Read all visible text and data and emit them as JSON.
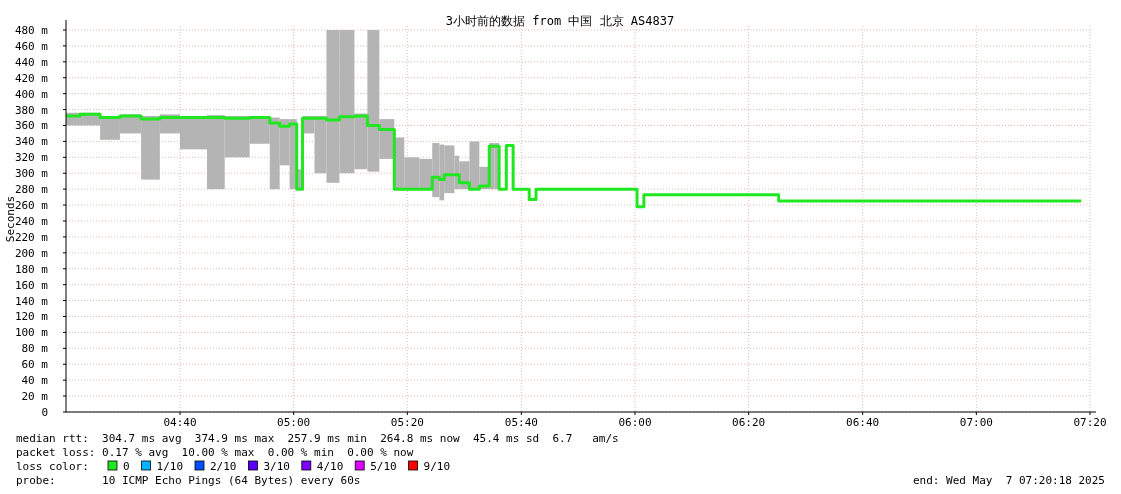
{
  "chart_data": {
    "type": "step",
    "title": "3小时前的数据 from 中国 北京 AS4837",
    "ylabel": "Seconds",
    "xlim": [
      4.333,
      7.333
    ],
    "ylim": [
      0,
      485
    ],
    "xticks": [
      {
        "value": 4.667,
        "label": "04:40"
      },
      {
        "value": 5,
        "label": "05:00"
      },
      {
        "value": 5.333,
        "label": "05:20"
      },
      {
        "value": 5.667,
        "label": "05:40"
      },
      {
        "value": 6,
        "label": "06:00"
      },
      {
        "value": 6.333,
        "label": "06:20"
      },
      {
        "value": 6.667,
        "label": "06:40"
      },
      {
        "value": 7,
        "label": "07:00"
      },
      {
        "value": 7.333,
        "label": "07:20"
      }
    ],
    "yticks": [
      0,
      {
        "value": 20,
        "label": "20 m"
      },
      {
        "value": 40,
        "label": "40 m"
      },
      {
        "value": 60,
        "label": "60 m"
      },
      {
        "value": 80,
        "label": "80 m"
      },
      {
        "value": 100,
        "label": "100 m"
      },
      {
        "value": 120,
        "label": "120 m"
      },
      {
        "value": 140,
        "label": "140 m"
      },
      {
        "value": 160,
        "label": "160 m"
      },
      {
        "value": 180,
        "label": "180 m"
      },
      {
        "value": 200,
        "label": "200 m"
      },
      {
        "value": 220,
        "label": "220 m"
      },
      {
        "value": 240,
        "label": "240 m"
      },
      {
        "value": 260,
        "label": "260 m"
      },
      {
        "value": 280,
        "label": "280 m"
      },
      {
        "value": 300,
        "label": "300 m"
      },
      {
        "value": 320,
        "label": "320 m"
      },
      {
        "value": 340,
        "label": "340 m"
      },
      {
        "value": 360,
        "label": "360 m"
      },
      {
        "value": 380,
        "label": "380 m"
      },
      {
        "value": 400,
        "label": "400 m"
      },
      {
        "value": 420,
        "label": "420 m"
      },
      {
        "value": 440,
        "label": "440 m"
      },
      {
        "value": 460,
        "label": "460 m"
      },
      {
        "value": 480,
        "label": "480 m"
      }
    ],
    "grid": true,
    "legend": "bottom",
    "legend_title": "loss color:",
    "series": [
      {
        "name": "0",
        "color": "#20e820",
        "x": [
          4.333,
          4.374,
          4.433,
          4.491,
          4.553,
          4.608,
          4.667,
          4.746,
          4.798,
          4.871,
          4.93,
          4.959,
          4.988,
          5.009,
          5.026,
          5.061,
          5.096,
          5.134,
          5.178,
          5.216,
          5.251,
          5.295,
          5.324,
          5.368,
          5.406,
          5.427,
          5.441,
          5.471,
          5.485,
          5.515,
          5.544,
          5.573,
          5.588,
          5.602,
          5.623,
          5.643,
          5.69,
          5.71,
          5.895,
          6.006,
          6.026,
          6.187,
          6.421,
          6.424,
          6.772,
          7.307
        ],
        "values": [
          372,
          374,
          370,
          372,
          368,
          370,
          370,
          370,
          369,
          370,
          363,
          359,
          362,
          280,
          369,
          369,
          367,
          371,
          372,
          360,
          355,
          280,
          280,
          280,
          295,
          292,
          298,
          298,
          288,
          280,
          284,
          334,
          334,
          280,
          335,
          280,
          267,
          280,
          280,
          258,
          273,
          273,
          265,
          265,
          265,
          265
        ],
        "lower": [
          360,
          360,
          342,
          350,
          292,
          350,
          330,
          280,
          320,
          337,
          280,
          310,
          280,
          280,
          350,
          300,
          288,
          300,
          305,
          302,
          318,
          280,
          280,
          280,
          270,
          266,
          275,
          280,
          280,
          280,
          280,
          280,
          280,
          null,
          null,
          null,
          null,
          null,
          null,
          null,
          null,
          null,
          null,
          null,
          null,
          null
        ],
        "upper": [
          376,
          376,
          372,
          374,
          372,
          374,
          372,
          373,
          372,
          372,
          370,
          368,
          368,
          305,
          372,
          372,
          480,
          480,
          375,
          480,
          368,
          345,
          320,
          318,
          338,
          336,
          335,
          322,
          315,
          340,
          308,
          338,
          338,
          null,
          null,
          null,
          null,
          null,
          null,
          null,
          null,
          null,
          null,
          null,
          null,
          null
        ]
      },
      {
        "name": "1/10",
        "color": "#00b4ff"
      },
      {
        "name": "2/10",
        "color": "#0050ff"
      },
      {
        "name": "3/10",
        "color": "#5a00ff"
      },
      {
        "name": "4/10",
        "color": "#7e00ff"
      },
      {
        "name": "5/10",
        "color": "#dd00ff"
      },
      {
        "name": "9/10",
        "color": "#ff0000"
      }
    ],
    "annotations": [
      "median rtt:  304.7 ms avg  374.9 ms max  257.9 ms min  264.8 ms now  45.4 ms sd  6.7   am/s",
      "packet loss: 0.17 % avg  10.00 % max  0.00 % min  0.00 % now",
      "probe:       10 ICMP Echo Pings (64 Bytes) every 60s",
      "end: Wed May  7 07:20:18 2025"
    ]
  }
}
